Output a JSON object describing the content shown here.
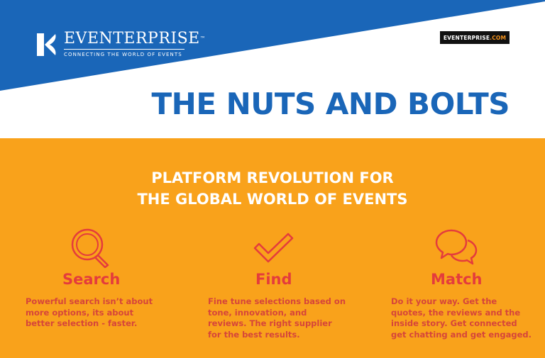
{
  "header": {
    "logo_name": "EVENTERPRISE",
    "logo_tm": "™",
    "logo_tagline": "CONNECTING THE WORLD OF EVENTS",
    "url_main": "EVENTERPRISE",
    "url_suffix": ".COM"
  },
  "title": "THE NUTS AND BOLTS",
  "subtitle": {
    "line1": "PLATFORM REVOLUTION FOR",
    "line2": "THE GLOBAL WORLD OF EVENTS"
  },
  "features": [
    {
      "icon": "search-icon",
      "title": "Search",
      "desc": [
        "Powerful search isn’t about",
        "more options, its about",
        "better selection - faster."
      ]
    },
    {
      "icon": "checkmark-icon",
      "title": "Find",
      "desc": [
        "Fine tune selections based on",
        "tone, innovation, and",
        "reviews. The right supplier",
        "for the best results."
      ]
    },
    {
      "icon": "chat-bubbles-icon",
      "title": "Match",
      "desc": [
        "Do it your way. Get the",
        "quotes, the reviews and the",
        "inside story. Get connected",
        "get chatting and get engaged."
      ]
    }
  ],
  "colors": {
    "blue": "#1a66b8",
    "orange": "#f9a21b",
    "accent_red": "#e43c3c",
    "white": "#ffffff",
    "badge_black": "#111111"
  }
}
